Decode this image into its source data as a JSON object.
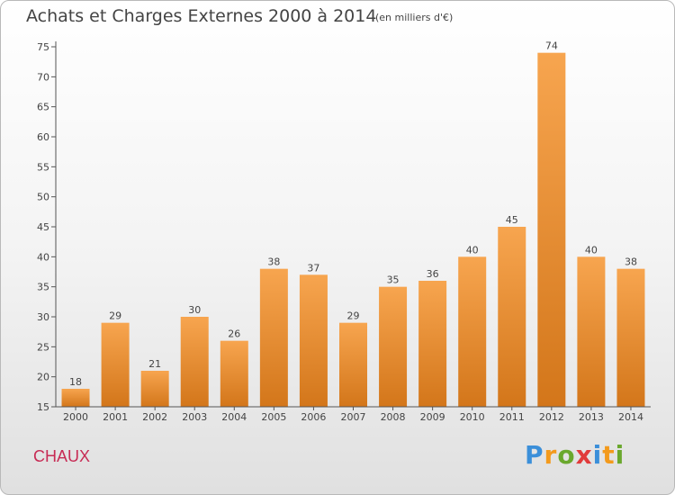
{
  "chart_data": {
    "type": "bar",
    "title": "Achats et Charges Externes 2000 à 2014",
    "subtitle": "(en milliers d'€)",
    "xlabel": "",
    "ylabel": "",
    "categories": [
      "2000",
      "2001",
      "2002",
      "2003",
      "2004",
      "2005",
      "2006",
      "2007",
      "2008",
      "2009",
      "2010",
      "2011",
      "2012",
      "2013",
      "2014"
    ],
    "values": [
      18,
      29,
      21,
      30,
      26,
      38,
      37,
      29,
      35,
      36,
      40,
      45,
      74,
      40,
      38
    ],
    "ylim": [
      15,
      75
    ],
    "yticks": [
      15,
      20,
      25,
      30,
      35,
      40,
      45,
      50,
      55,
      60,
      65,
      70,
      75
    ],
    "grid": false,
    "bar_color": "#f5a04a",
    "bar_color_dark": "#d27418",
    "data_labels": true
  },
  "footer": {
    "commune": "CHAUX",
    "logo": "Proxiti"
  },
  "colors": {
    "commune_text": "#c72b54",
    "axis": "#555555",
    "text": "#444444"
  }
}
